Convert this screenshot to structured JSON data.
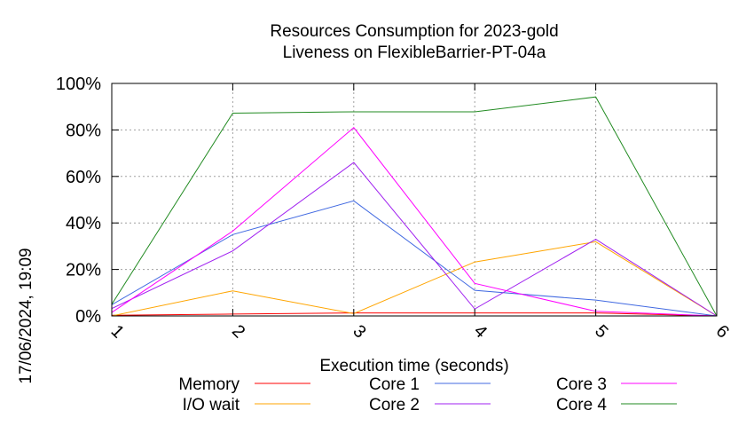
{
  "chart_data": {
    "type": "line",
    "title_line1": "Resources Consumption for 2023-gold",
    "title_line2": "Liveness on FlexibleBarrier-PT-04a",
    "xlabel": "Execution time (seconds)",
    "ylabel": "",
    "side_label": "17/06/2024, 19:09",
    "x": [
      1,
      2,
      3,
      4,
      5,
      6
    ],
    "x_tick_labels": [
      "1",
      "2",
      "3",
      "4",
      "5",
      "6"
    ],
    "xlim": [
      1,
      6
    ],
    "ylim": [
      0,
      100
    ],
    "y_ticks": [
      0,
      20,
      40,
      60,
      80,
      100
    ],
    "y_tick_labels": [
      "0%",
      "20%",
      "40%",
      "60%",
      "80%",
      "100%"
    ],
    "grid": true,
    "legend_placement": "bottom",
    "series": [
      {
        "name": "Memory",
        "color": "#ff0000",
        "values": [
          0.3,
          0.8,
          1.3,
          1.3,
          1.3,
          0.0
        ]
      },
      {
        "name": "I/O wait",
        "color": "#ffa500",
        "values": [
          0.0,
          10.8,
          1.0,
          23.2,
          31.9,
          0.0
        ]
      },
      {
        "name": "Core 1",
        "color": "#4169e1",
        "values": [
          4.8,
          35.0,
          49.5,
          11.0,
          6.8,
          0.0
        ]
      },
      {
        "name": "Core 2",
        "color": "#a020f0",
        "values": [
          3.2,
          28.0,
          66.0,
          3.0,
          33.0,
          0.0
        ]
      },
      {
        "name": "Core 3",
        "color": "#ff00ff",
        "values": [
          1.5,
          36.5,
          81.0,
          14.0,
          2.0,
          0.0
        ]
      },
      {
        "name": "Core 4",
        "color": "#228b22",
        "values": [
          5.0,
          87.2,
          87.8,
          87.8,
          94.2,
          0.0
        ]
      }
    ]
  }
}
